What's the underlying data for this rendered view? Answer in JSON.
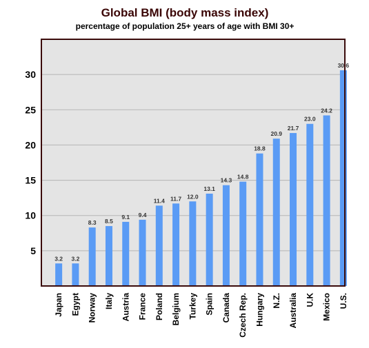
{
  "chart_data": {
    "type": "bar",
    "title": "Global BMI (body mass index)",
    "subtitle": "percentage of population 25+ years of age with BMI 30+",
    "xlabel": "",
    "ylabel": "",
    "categories": [
      "Japan",
      "Egypt",
      "Norway",
      "Italy",
      "Austria",
      "France",
      "Poland",
      "Belgium",
      "Turkey",
      "Spain",
      "Canada",
      "Czech Rep.",
      "Hungary",
      "N.Z.",
      "Australia",
      "U.K",
      "Mexico",
      "U.S."
    ],
    "values": [
      3.2,
      3.2,
      8.3,
      8.5,
      9.1,
      9.4,
      11.4,
      11.7,
      12.0,
      13.1,
      14.3,
      14.8,
      18.8,
      20.9,
      21.7,
      23.0,
      24.2,
      30.6
    ],
    "value_labels": [
      "3.2",
      "3.2",
      "8.3",
      "8.5",
      "9.1",
      "9.4",
      "11.4",
      "11.7",
      "12.0",
      "13.1",
      "14.3",
      "14.8",
      "18.8",
      "20.9",
      "21.7",
      "23.0",
      "24.2",
      "30.6"
    ],
    "ylim": [
      0,
      35
    ],
    "yticks": [
      5,
      10,
      15,
      20,
      25,
      30
    ],
    "ytick_labels": [
      "5",
      "10",
      "15",
      "20",
      "25",
      "30"
    ],
    "grid": true,
    "legend": "none",
    "colors": {
      "bar": "#5a9bf5",
      "plot_background": "#e4e4e4",
      "plot_border": "#3a0a0a",
      "gridline": "#b5b5b5",
      "title": "#3a0505"
    }
  }
}
